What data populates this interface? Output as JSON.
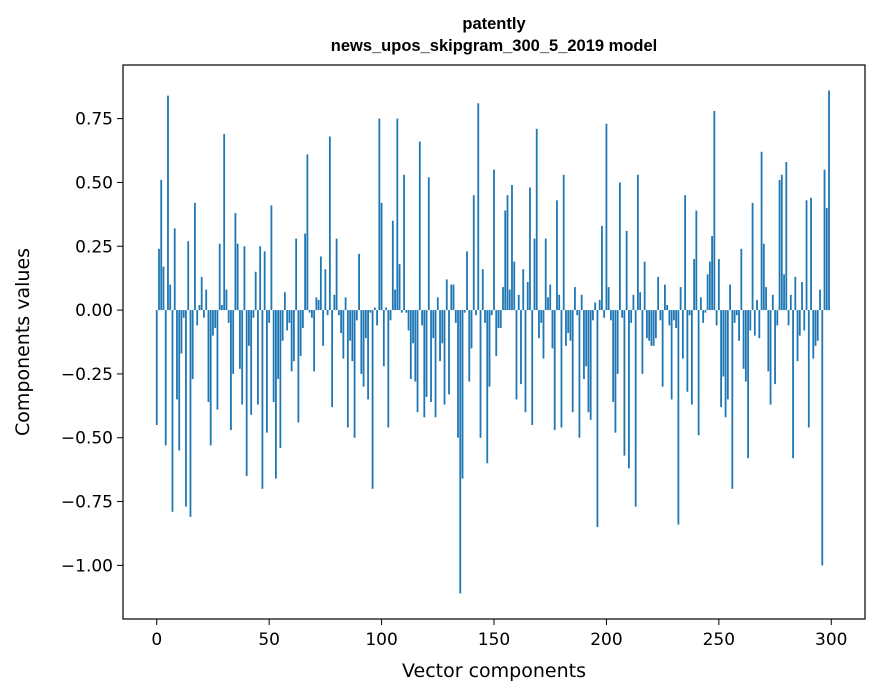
{
  "chart_data": {
    "type": "bar",
    "title_lines": [
      "patently",
      "news_upos_skipgram_300_5_2019 model"
    ],
    "xlabel": "Vector components",
    "ylabel": "Components values",
    "xlim": [
      -15,
      315
    ],
    "ylim": [
      -1.21,
      0.96
    ],
    "xticks": [
      0,
      50,
      100,
      150,
      200,
      250,
      300
    ],
    "xtick_labels": [
      "0",
      "50",
      "100",
      "150",
      "200",
      "250",
      "300"
    ],
    "yticks": [
      0.75,
      0.5,
      0.25,
      0.0,
      -0.25,
      -0.5,
      -0.75,
      -1.0
    ],
    "ytick_labels": [
      "0.75",
      "0.50",
      "0.25",
      "0.00",
      "−0.25",
      "−0.50",
      "−0.75",
      "−1.00"
    ],
    "bar_color": "#1f77b4",
    "x": "component index 0..299",
    "values": [
      -0.45,
      0.24,
      0.51,
      0.17,
      -0.53,
      0.84,
      0.1,
      -0.79,
      0.32,
      -0.35,
      -0.55,
      -0.17,
      -0.03,
      -0.77,
      0.27,
      -0.81,
      -0.27,
      0.42,
      -0.06,
      0.02,
      0.13,
      -0.03,
      0.08,
      -0.36,
      -0.53,
      -0.1,
      -0.07,
      -0.39,
      0.26,
      0.02,
      0.69,
      0.08,
      -0.05,
      -0.47,
      -0.25,
      0.38,
      0.26,
      -0.23,
      -0.37,
      0.25,
      -0.65,
      -0.14,
      -0.41,
      -0.03,
      0.15,
      -0.37,
      0.25,
      -0.7,
      0.23,
      -0.48,
      -0.05,
      0.41,
      -0.36,
      -0.66,
      -0.27,
      -0.54,
      -0.12,
      0.07,
      -0.08,
      -0.05,
      -0.24,
      -0.2,
      0.28,
      -0.44,
      -0.18,
      -0.07,
      0.3,
      0.61,
      -0.01,
      -0.03,
      -0.24,
      0.05,
      0.04,
      0.21,
      -0.14,
      0.16,
      -0.02,
      0.68,
      -0.38,
      0.06,
      0.28,
      -0.02,
      -0.09,
      -0.19,
      0.05,
      -0.46,
      -0.12,
      -0.2,
      -0.5,
      -0.04,
      0.22,
      -0.25,
      -0.3,
      -0.11,
      -0.35,
      -0.01,
      -0.7,
      0.01,
      -0.06,
      0.75,
      0.42,
      -0.22,
      0.01,
      -0.46,
      -0.04,
      0.35,
      0.08,
      0.75,
      0.18,
      -0.01,
      0.53,
      -0.01,
      -0.08,
      -0.27,
      -0.13,
      -0.28,
      -0.4,
      0.66,
      -0.06,
      -0.42,
      -0.34,
      0.52,
      -0.36,
      -0.11,
      -0.42,
      0.05,
      -0.2,
      -0.13,
      -0.37,
      0.12,
      -0.33,
      0.1,
      0.1,
      -0.05,
      -0.5,
      -1.11,
      -0.66,
      -0.01,
      0.23,
      -0.28,
      -0.15,
      0.45,
      -0.02,
      0.81,
      -0.5,
      0.16,
      -0.05,
      -0.6,
      -0.3,
      -0.02,
      0.55,
      -0.18,
      -0.07,
      -0.07,
      0.09,
      0.39,
      0.45,
      0.08,
      0.49,
      0.19,
      -0.35,
      0.06,
      -0.29,
      0.16,
      -0.4,
      0.11,
      0.48,
      -0.45,
      0.28,
      0.71,
      -0.11,
      -0.05,
      -0.19,
      0.28,
      0.05,
      0.1,
      -0.15,
      -0.47,
      0.43,
      0.06,
      -0.46,
      0.53,
      -0.14,
      -0.09,
      -0.12,
      -0.4,
      0.09,
      -0.02,
      -0.5,
      0.06,
      -0.27,
      -0.22,
      -0.4,
      -0.43,
      -0.04,
      0.03,
      -0.85,
      0.04,
      0.33,
      -0.03,
      0.73,
      0.09,
      -0.04,
      -0.36,
      -0.48,
      -0.25,
      0.5,
      -0.03,
      -0.57,
      0.31,
      -0.62,
      -0.05,
      0.06,
      -0.77,
      0.53,
      0.07,
      -0.25,
      0.19,
      -0.11,
      -0.12,
      -0.14,
      -0.14,
      -0.11,
      0.13,
      -0.04,
      -0.3,
      0.1,
      0.02,
      -0.06,
      -0.35,
      -0.04,
      -0.07,
      -0.84,
      0.09,
      -0.19,
      0.45,
      -0.32,
      -0.02,
      -0.37,
      0.2,
      0.39,
      -0.49,
      0.05,
      -0.05,
      -0.01,
      0.14,
      0.19,
      0.29,
      0.78,
      -0.06,
      0.2,
      -0.38,
      -0.26,
      -0.42,
      -0.35,
      0.1,
      -0.7,
      -0.05,
      -0.02,
      -0.12,
      0.24,
      -0.23,
      -0.28,
      -0.58,
      -0.08,
      0.42,
      -0.1,
      0.04,
      -0.11,
      0.62,
      0.26,
      0.09,
      -0.24,
      -0.37,
      0.06,
      -0.29,
      -0.06,
      0.51,
      0.53,
      0.14,
      0.58,
      -0.06,
      0.06,
      -0.58,
      0.13,
      -0.2,
      -0.1,
      0.11,
      -0.08,
      0.43,
      -0.46,
      0.44,
      -0.19,
      -0.14,
      -0.12,
      0.08,
      -1.0,
      0.55,
      0.4,
      0.86
    ]
  }
}
